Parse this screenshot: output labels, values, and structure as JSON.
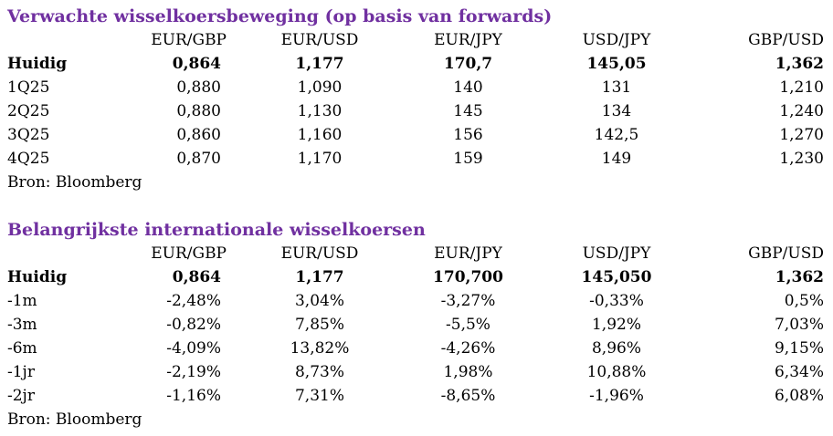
{
  "colors": {
    "title": "#7030a0",
    "text": "#000000",
    "background": "#ffffff"
  },
  "forwards": {
    "title": "Verwachte wisselkoersbeweging (op basis van forwards)",
    "headers": [
      "",
      "EUR/GBP",
      "EUR/USD",
      "EUR/JPY",
      "USD/JPY",
      "GBP/USD"
    ],
    "rows": [
      {
        "label": "Huidig",
        "bold": true,
        "values": [
          "0,864",
          "1,177",
          "170,7",
          "145,05",
          "1,362"
        ]
      },
      {
        "label": "1Q25",
        "bold": false,
        "values": [
          "0,880",
          "1,090",
          "140",
          "131",
          "1,210"
        ]
      },
      {
        "label": "2Q25",
        "bold": false,
        "values": [
          "0,880",
          "1,130",
          "145",
          "134",
          "1,240"
        ]
      },
      {
        "label": "3Q25",
        "bold": false,
        "values": [
          "0,860",
          "1,160",
          "156",
          "142,5",
          "1,270"
        ]
      },
      {
        "label": "4Q25",
        "bold": false,
        "values": [
          "0,870",
          "1,170",
          "159",
          "149",
          "1,230"
        ]
      }
    ],
    "source": "Bron: Bloomberg"
  },
  "rates": {
    "title": "Belangrijkste internationale wisselkoersen",
    "headers": [
      "",
      "EUR/GBP",
      "EUR/USD",
      "EUR/JPY",
      "USD/JPY",
      "GBP/USD"
    ],
    "rows": [
      {
        "label": "Huidig",
        "bold": true,
        "values": [
          "0,864",
          "1,177",
          "170,700",
          "145,050",
          "1,362"
        ]
      },
      {
        "label": "-1m",
        "bold": false,
        "values": [
          "-2,48%",
          "3,04%",
          "-3,27%",
          "-0,33%",
          "0,5%"
        ]
      },
      {
        "label": "-3m",
        "bold": false,
        "values": [
          "-0,82%",
          "7,85%",
          "-5,5%",
          "1,92%",
          "7,03%"
        ]
      },
      {
        "label": "-6m",
        "bold": false,
        "values": [
          "-4,09%",
          "13,82%",
          "-4,26%",
          "8,96%",
          "9,15%"
        ]
      },
      {
        "label": "-1jr",
        "bold": false,
        "values": [
          "-2,19%",
          "8,73%",
          "1,98%",
          "10,88%",
          "6,34%"
        ]
      },
      {
        "label": "-2jr",
        "bold": false,
        "values": [
          "-1,16%",
          "7,31%",
          "-8,65%",
          "-1,96%",
          "6,08%"
        ]
      }
    ],
    "source": "Bron: Bloomberg"
  }
}
